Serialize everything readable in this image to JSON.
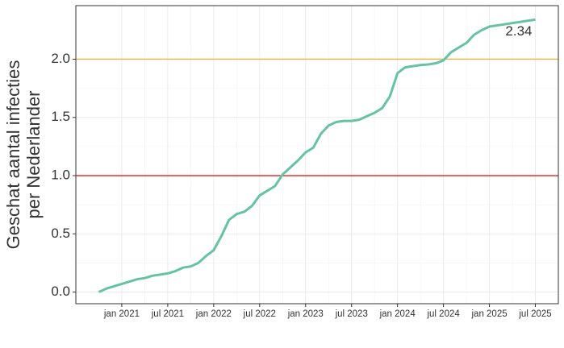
{
  "chart_data": {
    "type": "line",
    "ylabel": [
      "Geschat aantal infecties",
      "per Nederlander"
    ],
    "x": [
      "2020-10",
      "2020-11",
      "2020-12",
      "2021-01",
      "2021-02",
      "2021-03",
      "2021-04",
      "2021-05",
      "2021-06",
      "2021-07",
      "2021-08",
      "2021-09",
      "2021-10",
      "2021-11",
      "2021-12",
      "2022-01",
      "2022-02",
      "2022-03",
      "2022-04",
      "2022-05",
      "2022-06",
      "2022-07",
      "2022-08",
      "2022-09",
      "2022-10",
      "2022-11",
      "2022-12",
      "2023-01",
      "2023-02",
      "2023-03",
      "2023-04",
      "2023-05",
      "2023-06",
      "2023-07",
      "2023-08",
      "2023-09",
      "2023-10",
      "2023-11",
      "2023-12",
      "2024-01",
      "2024-02",
      "2024-03",
      "2024-04",
      "2024-05",
      "2024-06",
      "2024-07",
      "2024-08",
      "2024-09",
      "2024-10",
      "2024-11",
      "2024-12",
      "2025-01",
      "2025-02",
      "2025-03",
      "2025-04",
      "2025-05",
      "2025-06",
      "2025-07"
    ],
    "series": [
      {
        "color": "#66c2a5",
        "values": [
          0.0,
          0.03,
          0.05,
          0.07,
          0.09,
          0.11,
          0.12,
          0.14,
          0.15,
          0.16,
          0.18,
          0.21,
          0.22,
          0.25,
          0.31,
          0.36,
          0.48,
          0.62,
          0.67,
          0.69,
          0.74,
          0.83,
          0.87,
          0.91,
          1.01,
          1.07,
          1.13,
          1.2,
          1.24,
          1.36,
          1.43,
          1.46,
          1.47,
          1.47,
          1.48,
          1.51,
          1.54,
          1.58,
          1.68,
          1.88,
          1.93,
          1.94,
          1.95,
          1.955,
          1.965,
          1.99,
          2.06,
          2.1,
          2.14,
          2.21,
          2.25,
          2.28,
          2.29,
          2.3,
          2.31,
          2.32,
          2.33,
          2.34
        ]
      }
    ],
    "annotation": "2.34",
    "hlines": [
      {
        "value": 1,
        "color": "#e41a1c"
      },
      {
        "value": 2,
        "color": "#f5b041"
      }
    ],
    "xlim": [
      "2020-07",
      "2025-10"
    ],
    "xticks": [
      {
        "value": "2021-01",
        "label": "jan 2021"
      },
      {
        "value": "2021-07",
        "label": "jul 2021"
      },
      {
        "value": "2022-01",
        "label": "jan 2022"
      },
      {
        "value": "2022-07",
        "label": "jul 2022"
      },
      {
        "value": "2023-01",
        "label": "jan 2023"
      },
      {
        "value": "2023-07",
        "label": "jul 2023"
      },
      {
        "value": "2024-01",
        "label": "jan 2024"
      },
      {
        "value": "2024-07",
        "label": "jul 2024"
      },
      {
        "value": "2025-01",
        "label": "jan 2025"
      },
      {
        "value": "2025-07",
        "label": "jul 2025"
      }
    ],
    "ylim": [
      -0.1,
      2.46
    ],
    "yticks": [
      {
        "value": 0,
        "label": "0.0"
      },
      0.5,
      {
        "value": 1,
        "label": "1.0"
      },
      1.5,
      {
        "value": 2,
        "label": "2.0"
      }
    ],
    "grid": true
  }
}
